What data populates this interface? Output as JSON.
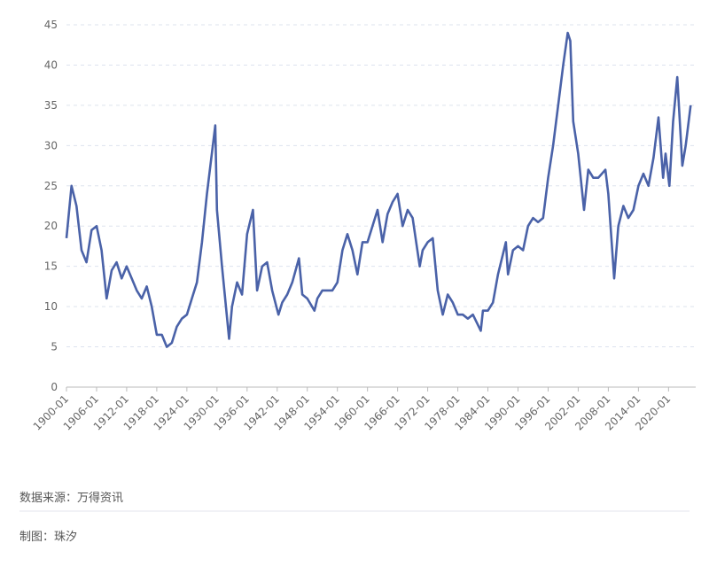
{
  "chart_data": {
    "type": "line",
    "x": [
      "1900-01",
      "1901-01",
      "1902-01",
      "1903-01",
      "1904-01",
      "1905-01",
      "1906-01",
      "1907-01",
      "1908-01",
      "1909-01",
      "1910-01",
      "1911-01",
      "1912-01",
      "1913-01",
      "1914-01",
      "1915-01",
      "1916-01",
      "1917-01",
      "1918-01",
      "1919-01",
      "1920-01",
      "1921-01",
      "1922-01",
      "1923-01",
      "1924-01",
      "1925-01",
      "1926-01",
      "1927-01",
      "1928-01",
      "1929-09",
      "1930-01",
      "1931-01",
      "1932-06",
      "1933-01",
      "1934-01",
      "1935-01",
      "1936-01",
      "1937-03",
      "1938-01",
      "1939-01",
      "1940-01",
      "1941-01",
      "1942-04",
      "1943-01",
      "1944-01",
      "1945-01",
      "1946-05",
      "1947-01",
      "1948-01",
      "1949-06",
      "1950-01",
      "1951-01",
      "1952-01",
      "1953-01",
      "1954-01",
      "1955-01",
      "1956-01",
      "1957-01",
      "1958-01",
      "1959-01",
      "1960-01",
      "1961-01",
      "1962-01",
      "1963-01",
      "1964-01",
      "1965-01",
      "1966-01",
      "1967-01",
      "1968-01",
      "1969-01",
      "1970-06",
      "1971-01",
      "1972-01",
      "1973-01",
      "1974-01",
      "1975-01",
      "1976-01",
      "1977-01",
      "1978-01",
      "1979-01",
      "1980-01",
      "1981-01",
      "1982-08",
      "1983-01",
      "1984-01",
      "1985-01",
      "1986-01",
      "1987-08",
      "1988-01",
      "1989-01",
      "1990-01",
      "1991-01",
      "1992-01",
      "1993-01",
      "1994-01",
      "1995-01",
      "1996-01",
      "1997-01",
      "1998-01",
      "1999-01",
      "1999-12",
      "2000-06",
      "2001-01",
      "2002-01",
      "2003-03",
      "2004-01",
      "2005-01",
      "2006-01",
      "2007-06",
      "2008-01",
      "2009-03",
      "2010-01",
      "2011-01",
      "2012-01",
      "2013-01",
      "2014-01",
      "2015-01",
      "2016-01",
      "2017-01",
      "2018-01",
      "2018-12",
      "2019-06",
      "2020-03",
      "2020-12",
      "2021-10",
      "2022-10",
      "2023-06",
      "2024-06"
    ],
    "series": [
      {
        "color": "#4a62a8",
        "values": [
          18.5,
          25,
          22.5,
          17,
          15.5,
          19.5,
          20,
          17,
          11,
          14.5,
          15.5,
          13.5,
          15,
          13.5,
          12,
          11,
          12.5,
          10,
          6.5,
          6.5,
          5,
          5.5,
          7.5,
          8.5,
          9,
          11,
          13,
          18,
          24,
          32.5,
          22,
          15,
          6,
          10,
          13,
          11.5,
          19,
          22,
          12,
          15,
          15.5,
          12,
          9,
          10.5,
          11.5,
          13,
          16,
          11.5,
          11,
          9.5,
          11,
          12,
          12,
          12,
          13,
          17,
          19,
          17,
          14,
          18,
          18,
          20,
          22,
          18,
          21.5,
          23,
          24,
          20,
          22,
          21,
          15,
          17,
          18,
          18.5,
          12,
          9,
          11.5,
          10.5,
          9,
          9,
          8.5,
          9,
          7,
          9.5,
          9.5,
          10.5,
          14,
          18,
          14,
          17,
          17.5,
          17,
          20,
          21,
          20.5,
          21,
          26,
          30,
          35,
          40,
          44,
          43,
          33,
          29,
          22,
          27,
          26,
          26,
          27,
          24,
          13.5,
          20,
          22.5,
          21,
          22,
          25,
          26.5,
          25,
          28.5,
          33.5,
          26,
          29,
          25,
          33,
          38.5,
          27.5,
          30,
          35
        ]
      }
    ],
    "xlim": [
      "1900-01",
      "2025-06"
    ],
    "xticks": [
      "1900-01",
      "1906-01",
      "1912-01",
      "1918-01",
      "1924-01",
      "1930-01",
      "1936-01",
      "1942-01",
      "1948-01",
      "1954-01",
      "1960-01",
      "1966-01",
      "1972-01",
      "1978-01",
      "1984-01",
      "1990-01",
      "1996-01",
      "2002-01",
      "2008-01",
      "2014-01",
      "2020-01"
    ],
    "ylim": [
      0,
      45
    ],
    "yticks": [
      0,
      5,
      10,
      15,
      20,
      25,
      30,
      35,
      40,
      45
    ],
    "grid": true,
    "source": "数据来源：万得资讯",
    "credit": "制图：珠汐"
  }
}
